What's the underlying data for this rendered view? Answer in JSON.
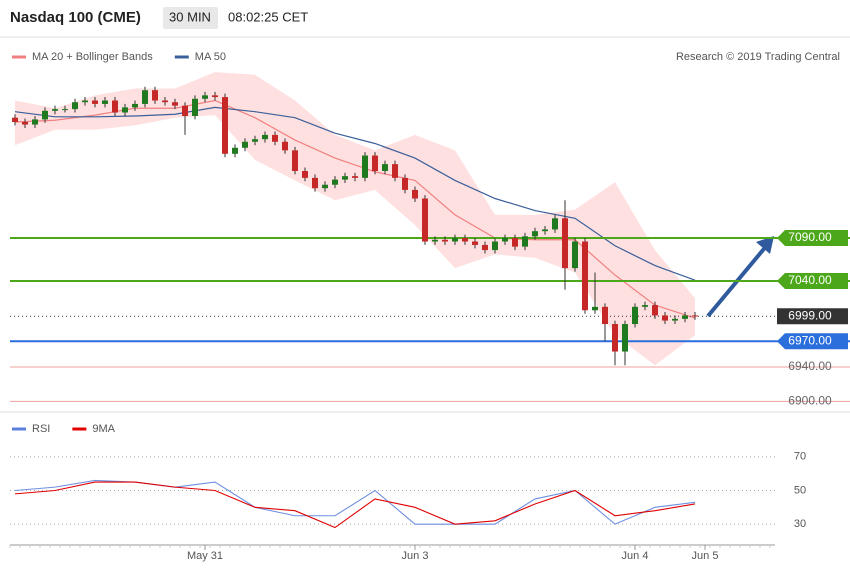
{
  "header": {
    "title": "Nasdaq 100 (CME)",
    "interval": "30 MIN",
    "time": "08:02:25 CET"
  },
  "chart_data": [
    {
      "type": "candlestick",
      "legend": [
        {
          "name": "MA 20 + Bollinger Bands",
          "color": "#f08080"
        },
        {
          "name": "MA 50",
          "color": "#3a5f9a"
        }
      ],
      "credit": "Research © 2019 Trading Central",
      "xticks": [
        {
          "value": 19,
          "label": "May 31"
        },
        {
          "value": 40,
          "label": "Jun 3"
        },
        {
          "value": 62,
          "label": "Jun 4"
        },
        {
          "value": 69,
          "label": "Jun 5"
        }
      ],
      "ylim": [
        6890,
        7332
      ],
      "up_color": "#1f7a1f",
      "down_color": "#c62828",
      "open": [
        7230,
        7225,
        7222,
        7228,
        7238,
        7240,
        7240,
        7248,
        7250,
        7246,
        7250,
        7236,
        7242,
        7246,
        7262,
        7250,
        7248,
        7244,
        7232,
        7252,
        7256,
        7254,
        7188,
        7195,
        7202,
        7205,
        7210,
        7202,
        7192,
        7168,
        7160,
        7148,
        7152,
        7158,
        7162,
        7160,
        7186,
        7168,
        7176,
        7160,
        7146,
        7136,
        7086,
        7088,
        7086,
        7090,
        7086,
        7082,
        7076,
        7086,
        7090,
        7080,
        7092,
        7098,
        7100,
        7113,
        7055,
        7086,
        7006,
        7010,
        6990,
        6958,
        6990,
        7010,
        7012,
        7000,
        6994,
        6996,
        7000
      ],
      "high": [
        7234,
        7229,
        7232,
        7242,
        7244,
        7244,
        7252,
        7254,
        7254,
        7254,
        7254,
        7246,
        7250,
        7266,
        7266,
        7254,
        7252,
        7248,
        7256,
        7260,
        7260,
        7258,
        7199,
        7206,
        7209,
        7214,
        7214,
        7206,
        7196,
        7172,
        7164,
        7156,
        7162,
        7166,
        7166,
        7190,
        7190,
        7180,
        7180,
        7164,
        7150,
        7140,
        7092,
        7092,
        7094,
        7094,
        7090,
        7086,
        7090,
        7094,
        7094,
        7096,
        7102,
        7104,
        7117,
        7134,
        7090,
        7090,
        7050,
        7014,
        6994,
        6994,
        7014,
        7016,
        7016,
        7004,
        7000,
        7004,
        7004
      ],
      "low": [
        7221,
        7218,
        7218,
        7224,
        7234,
        7236,
        7236,
        7244,
        7242,
        7242,
        7232,
        7232,
        7238,
        7242,
        7246,
        7244,
        7240,
        7210,
        7228,
        7248,
        7250,
        7184,
        7184,
        7191,
        7198,
        7201,
        7198,
        7188,
        7164,
        7156,
        7144,
        7144,
        7148,
        7154,
        7156,
        7156,
        7164,
        7164,
        7156,
        7142,
        7132,
        7082,
        7082,
        7082,
        7082,
        7082,
        7078,
        7072,
        7072,
        7082,
        7076,
        7076,
        7088,
        7094,
        7096,
        7030,
        7051,
        7002,
        7002,
        6970,
        6942,
        6942,
        6986,
        7006,
        6996,
        6990,
        6990,
        6992,
        6995
      ],
      "close": [
        7225,
        7222,
        7228,
        7238,
        7240,
        7240,
        7248,
        7250,
        7246,
        7250,
        7236,
        7242,
        7246,
        7262,
        7250,
        7248,
        7244,
        7232,
        7252,
        7256,
        7254,
        7188,
        7195,
        7202,
        7205,
        7210,
        7202,
        7192,
        7168,
        7160,
        7148,
        7152,
        7158,
        7162,
        7160,
        7186,
        7168,
        7176,
        7160,
        7146,
        7136,
        7086,
        7088,
        7086,
        7090,
        7086,
        7082,
        7076,
        7086,
        7090,
        7080,
        7092,
        7098,
        7100,
        7113,
        7055,
        7086,
        7006,
        7010,
        6990,
        6958,
        6990,
        7010,
        7012,
        7000,
        6994,
        6996,
        7000,
        6999
      ],
      "overlay_step": 4,
      "bands": {
        "color": "#ffd6d6",
        "upper": [
          7250,
          7241,
          7256,
          7264,
          7264,
          7283,
          7280,
          7250,
          7210,
          7192,
          7210,
          7192,
          7117,
          7117,
          7123,
          7155,
          7076,
          7020
        ],
        "lower": [
          7198,
          7216,
          7216,
          7221,
          7230,
          7233,
          7181,
          7157,
          7134,
          7146,
          7105,
          7055,
          7071,
          7067,
          7050,
          6977,
          6942,
          6977
        ]
      },
      "series": [
        {
          "name": "MA 20",
          "color": "#f08080",
          "values": [
            7225,
            7227,
            7233,
            7241,
            7241,
            7250,
            7230,
            7204,
            7183,
            7167,
            7157,
            7117,
            7090,
            7088,
            7088,
            7047,
            7012,
            6997
          ]
        },
        {
          "name": "MA 50",
          "color": "#3a5f9a",
          "values": [
            7237,
            7231,
            7231,
            7232,
            7234,
            7242,
            7237,
            7230,
            7212,
            7200,
            7183,
            7157,
            7136,
            7122,
            7113,
            7081,
            7058,
            7041
          ]
        }
      ],
      "levels": [
        {
          "value": 7090,
          "label": "7090.00",
          "color": "#4ca81a",
          "style": "box"
        },
        {
          "value": 7040,
          "label": "7040.00",
          "color": "#4ca81a",
          "style": "box"
        },
        {
          "value": 6999,
          "label": "6999.00",
          "color": "#333333",
          "style": "dotted"
        },
        {
          "value": 6970,
          "label": "6970.00",
          "color": "#2a6fdb",
          "style": "box"
        },
        {
          "value": 6940,
          "label": "6940.00",
          "color": "#f0a0a0",
          "style": "text"
        },
        {
          "value": 6900,
          "label": "6900.00",
          "color": "#f0a0a0",
          "style": "text"
        }
      ]
    },
    {
      "type": "line",
      "legend": [
        {
          "name": "RSI",
          "color": "#5b7fdc"
        },
        {
          "name": "9MA",
          "color": "#e00000"
        }
      ],
      "ylim": [
        20,
        80
      ],
      "yticks": [
        70,
        50,
        30
      ],
      "series": [
        {
          "name": "RSI",
          "color": "#6f8fe0",
          "values": [
            50,
            52,
            56,
            55,
            52,
            55,
            40,
            35,
            35,
            50,
            30,
            30,
            30,
            45,
            50,
            30,
            40,
            43
          ]
        },
        {
          "name": "9MA",
          "color": "#e00000",
          "values": [
            48,
            50,
            55,
            55,
            52,
            50,
            40,
            38,
            28,
            45,
            40,
            30,
            32,
            42,
            50,
            35,
            38,
            42
          ]
        }
      ]
    }
  ]
}
